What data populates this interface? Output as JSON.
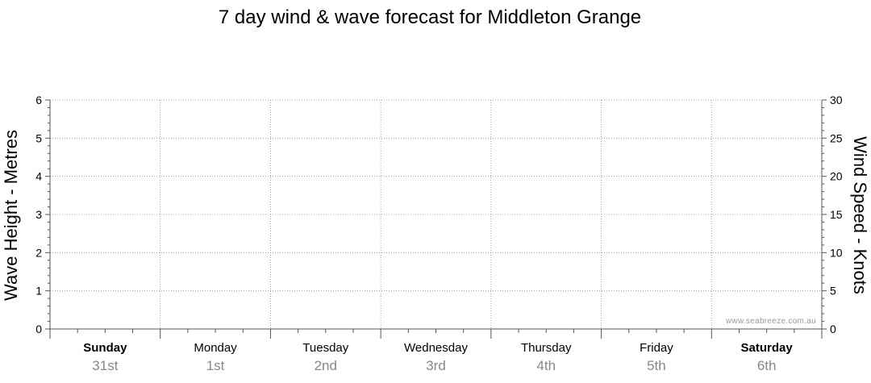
{
  "chart_data": {
    "type": "line",
    "title": "7 day wind & wave forecast for Middleton Grange",
    "ylabel_left": "Wave Height - Metres",
    "ylabel_right": "Wind Speed - Knots",
    "ylim_left": [
      0,
      6
    ],
    "ylim_right": [
      0,
      30
    ],
    "yticks_left": [
      "0",
      "1",
      "2",
      "3",
      "4",
      "5",
      "6"
    ],
    "yticks_right": [
      "0",
      "5",
      "10",
      "15",
      "20",
      "25",
      "30"
    ],
    "grid": true,
    "days": [
      {
        "name": "Sunday",
        "date": "31st",
        "weekend": true
      },
      {
        "name": "Monday",
        "date": "1st",
        "weekend": false
      },
      {
        "name": "Tuesday",
        "date": "2nd",
        "weekend": false
      },
      {
        "name": "Wednesday",
        "date": "3rd",
        "weekend": false
      },
      {
        "name": "Thursday",
        "date": "4th",
        "weekend": false
      },
      {
        "name": "Friday",
        "date": "5th",
        "weekend": false
      },
      {
        "name": "Saturday",
        "date": "6th",
        "weekend": true
      }
    ],
    "series": [],
    "watermark": "www.seabreeze.com.au"
  }
}
